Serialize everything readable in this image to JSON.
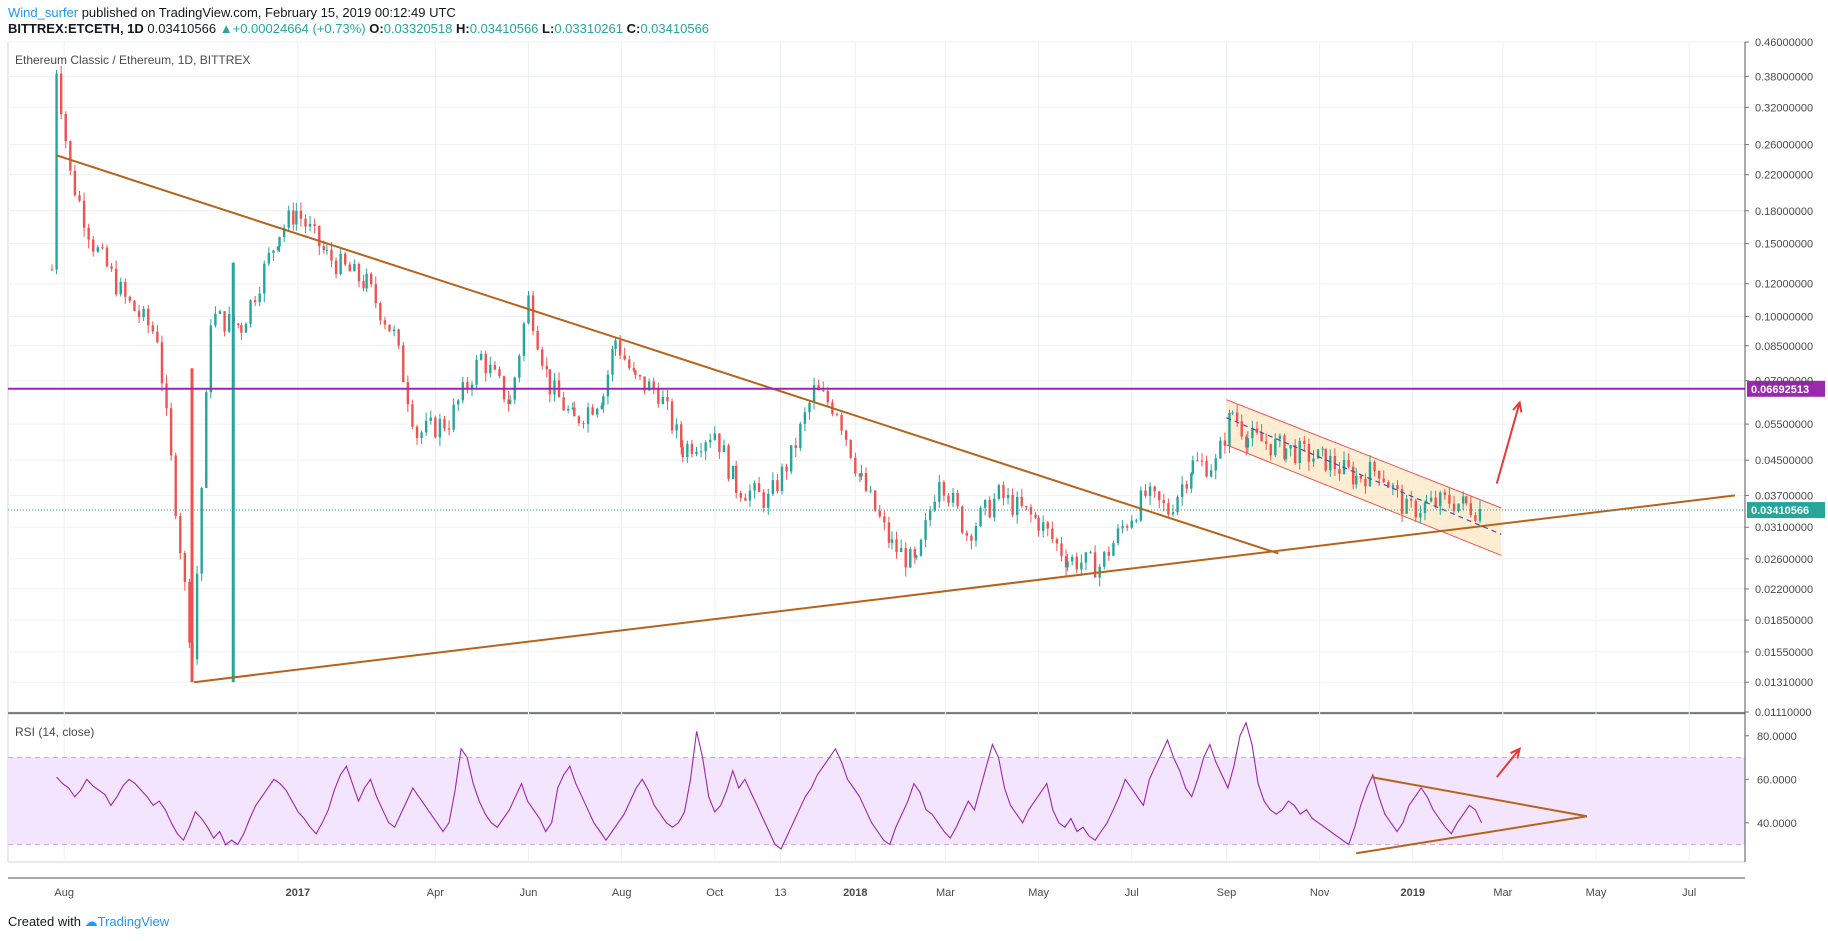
{
  "header": {
    "author": "Wind_surfer",
    "published_text": "published on TradingView.com, February 15, 2019 00:12:49 UTC",
    "symbol": "BITTREX:ETCETH, 1D",
    "last": "0.03410566",
    "change": "+0.00024664 (+0.73%)",
    "open_label": "O:",
    "open": "0.03320518",
    "high_label": "H:",
    "high": "0.03410566",
    "low_label": "L:",
    "low": "0.03310261",
    "close_label": "C:",
    "close": "0.03410566"
  },
  "chart_data": [
    {
      "type": "candlestick",
      "title": "Ethereum Classic / Ethereum, 1D, BITTREX",
      "y_scale": "log",
      "ylim": [
        0.0111,
        0.46
      ],
      "y_ticks": [
        "0.46000000",
        "0.38000000",
        "0.32000000",
        "0.26000000",
        "0.22000000",
        "0.18000000",
        "0.15000000",
        "0.12000000",
        "0.10000000",
        "0.08500000",
        "0.07000000",
        "0.05500000",
        "0.04500000",
        "0.03700000",
        "0.03100000",
        "0.02600000",
        "0.02200000",
        "0.01850000",
        "0.01550000",
        "0.01310000",
        "0.01110000"
      ],
      "x_ticks": [
        "Aug",
        "2017",
        "Apr",
        "Jun",
        "Aug",
        "Oct",
        "13",
        "2018",
        "Mar",
        "May",
        "Jul",
        "Sep",
        "Nov",
        "2019",
        "Mar",
        "May",
        "Jul"
      ],
      "date_range": [
        "2016-07-24",
        "2019-02-15"
      ],
      "price_points": [
        {
          "date": "2016-07-24",
          "value": 0.13
        },
        {
          "date": "2016-07-27",
          "value": 0.4
        },
        {
          "date": "2016-08-05",
          "value": 0.22
        },
        {
          "date": "2016-08-20",
          "value": 0.15
        },
        {
          "date": "2016-09-10",
          "value": 0.11
        },
        {
          "date": "2016-10-01",
          "value": 0.09
        },
        {
          "date": "2016-10-24",
          "value": 0.015
        },
        {
          "date": "2016-11-05",
          "value": 0.1
        },
        {
          "date": "2016-11-25",
          "value": 0.095
        },
        {
          "date": "2016-12-20",
          "value": 0.16
        },
        {
          "date": "2016-12-31",
          "value": 0.18
        },
        {
          "date": "2017-01-20",
          "value": 0.14
        },
        {
          "date": "2017-02-15",
          "value": 0.12
        },
        {
          "date": "2017-03-05",
          "value": 0.09
        },
        {
          "date": "2017-03-20",
          "value": 0.052
        },
        {
          "date": "2017-04-10",
          "value": 0.056
        },
        {
          "date": "2017-05-01",
          "value": 0.08
        },
        {
          "date": "2017-05-20",
          "value": 0.062
        },
        {
          "date": "2017-06-01",
          "value": 0.11
        },
        {
          "date": "2017-06-15",
          "value": 0.068
        },
        {
          "date": "2017-07-01",
          "value": 0.056
        },
        {
          "date": "2017-07-20",
          "value": 0.065
        },
        {
          "date": "2017-07-28",
          "value": 0.088
        },
        {
          "date": "2017-08-10",
          "value": 0.07
        },
        {
          "date": "2017-08-25",
          "value": 0.066
        },
        {
          "date": "2017-09-10",
          "value": 0.048
        },
        {
          "date": "2017-10-01",
          "value": 0.053
        },
        {
          "date": "2017-10-15",
          "value": 0.039
        },
        {
          "date": "2017-11-05",
          "value": 0.036
        },
        {
          "date": "2017-11-20",
          "value": 0.046
        },
        {
          "date": "2017-12-05",
          "value": 0.066
        },
        {
          "date": "2017-12-20",
          "value": 0.06
        },
        {
          "date": "2018-01-05",
          "value": 0.04
        },
        {
          "date": "2018-01-25",
          "value": 0.028
        },
        {
          "date": "2018-02-10",
          "value": 0.025
        },
        {
          "date": "2018-02-25",
          "value": 0.042
        },
        {
          "date": "2018-03-15",
          "value": 0.03
        },
        {
          "date": "2018-04-05",
          "value": 0.037
        },
        {
          "date": "2018-05-01",
          "value": 0.032
        },
        {
          "date": "2018-05-20",
          "value": 0.026
        },
        {
          "date": "2018-06-10",
          "value": 0.025
        },
        {
          "date": "2018-06-25",
          "value": 0.031
        },
        {
          "date": "2018-07-10",
          "value": 0.037
        },
        {
          "date": "2018-07-25",
          "value": 0.034
        },
        {
          "date": "2018-08-10",
          "value": 0.044
        },
        {
          "date": "2018-08-25",
          "value": 0.044
        },
        {
          "date": "2018-09-05",
          "value": 0.059
        },
        {
          "date": "2018-09-15",
          "value": 0.051
        },
        {
          "date": "2018-10-10",
          "value": 0.048
        },
        {
          "date": "2018-11-05",
          "value": 0.045
        },
        {
          "date": "2018-11-25",
          "value": 0.041
        },
        {
          "date": "2018-12-10",
          "value": 0.043
        },
        {
          "date": "2018-12-28",
          "value": 0.034
        },
        {
          "date": "2019-01-10",
          "value": 0.035
        },
        {
          "date": "2019-01-25",
          "value": 0.036
        },
        {
          "date": "2019-02-05",
          "value": 0.035
        },
        {
          "date": "2019-02-15",
          "value": 0.0341
        }
      ],
      "horizontal_line": {
        "value": 0.06692513,
        "label": "0.06692513",
        "color": "#9c27b0"
      },
      "last_price": {
        "value": 0.03410566,
        "label": "0.03410566",
        "color": "#26a69a"
      },
      "trendlines": [
        {
          "from": {
            "date": "2016-07-27",
            "value": 0.245
          },
          "to": {
            "date": "2018-10-05",
            "value": 0.0268
          },
          "color": "#b8621b"
        },
        {
          "from": {
            "date": "2016-10-25",
            "value": 0.0131
          },
          "to": {
            "date": "2019-07-31",
            "value": 0.037
          },
          "color": "#b8621b"
        }
      ],
      "channel": {
        "upper_from": {
          "date": "2018-09-01",
          "value": 0.063
        },
        "upper_to": {
          "date": "2019-02-28",
          "value": 0.0345
        },
        "lower_from": {
          "date": "2018-09-01",
          "value": 0.049
        },
        "lower_to": {
          "date": "2019-02-28",
          "value": 0.0265
        },
        "fill": "#fce8c8",
        "stroke": "#ef5350"
      },
      "dashed_line": {
        "from": {
          "date": "2018-09-01",
          "value": 0.057
        },
        "to": {
          "date": "2019-02-28",
          "value": 0.0298
        },
        "color": "#3f51b5"
      },
      "arrow": {
        "from": {
          "date": "2019-02-25",
          "value": 0.0395
        },
        "to": {
          "date": "2019-03-12",
          "value": 0.062
        },
        "color": "#e53935"
      },
      "up_color": "#26a69a",
      "down_color": "#ef5350"
    },
    {
      "type": "line",
      "title": "RSI (14, close)",
      "ylim": [
        22,
        90
      ],
      "y_ticks": [
        "80.0000",
        "60.0000",
        "40.0000"
      ],
      "band": [
        30,
        70
      ],
      "band_color": "#f3e5fd",
      "series": [
        {
          "values": [
            61,
            58,
            56,
            52,
            55,
            60,
            57,
            55,
            53,
            48,
            52,
            57,
            60,
            58,
            55,
            52,
            48,
            50,
            46,
            40,
            35,
            32,
            38,
            45,
            42,
            38,
            33,
            36,
            30,
            32,
            30,
            35,
            42,
            48,
            52,
            56,
            60,
            58,
            55,
            50,
            45,
            42,
            38,
            35,
            40,
            46,
            55,
            62,
            66,
            58,
            50,
            56,
            60,
            52,
            46,
            40,
            38,
            44,
            50,
            56,
            52,
            48,
            44,
            40,
            36,
            40,
            55,
            74,
            70,
            58,
            50,
            44,
            40,
            38,
            42,
            46,
            52,
            58,
            50,
            46,
            42,
            36,
            40,
            56,
            62,
            66,
            58,
            52,
            46,
            40,
            36,
            32,
            36,
            40,
            44,
            50,
            56,
            60,
            55,
            48,
            44,
            40,
            38,
            40,
            45,
            60,
            82,
            70,
            52,
            45,
            48,
            55,
            64,
            56,
            60,
            54,
            48,
            42,
            36,
            30,
            28,
            34,
            40,
            46,
            52,
            56,
            62,
            66,
            70,
            74,
            68,
            60,
            56,
            52,
            46,
            40,
            36,
            32,
            30,
            38,
            44,
            50,
            58,
            54,
            46,
            44,
            40,
            36,
            33,
            38,
            44,
            50,
            46,
            56,
            66,
            76,
            70,
            56,
            48,
            44,
            40,
            46,
            50,
            54,
            58,
            46,
            40,
            38,
            42,
            36,
            38,
            34,
            32,
            36,
            40,
            46,
            52,
            60,
            56,
            52,
            48,
            60,
            66,
            72,
            78,
            70,
            64,
            56,
            52,
            60,
            70,
            76,
            68,
            62,
            56,
            66,
            80,
            86,
            76,
            58,
            50,
            46,
            44,
            46,
            50,
            48,
            44,
            46,
            42,
            40,
            38,
            36,
            34,
            32,
            30,
            38,
            48,
            56,
            62,
            52,
            44,
            40,
            36,
            40,
            48,
            52,
            56,
            52,
            46,
            42,
            38,
            35,
            40,
            44,
            48,
            46,
            40
          ]
        }
      ],
      "triangle": {
        "upper_from": {
          "date": "2018-12-05",
          "value": 61
        },
        "upper_to": {
          "date": "2019-04-25",
          "value": 43
        },
        "lower_from": {
          "date": "2018-11-25",
          "value": 26
        },
        "lower_to": {
          "date": "2019-04-25",
          "value": 43
        },
        "color": "#b8621b"
      },
      "arrow": {
        "from": {
          "date": "2019-02-25",
          "value": 61
        },
        "to": {
          "date": "2019-03-12",
          "value": 74
        },
        "color": "#e53935"
      },
      "line_color": "#9c27b0"
    }
  ],
  "footer": {
    "created_with": "Created with",
    "brand": "TradingView"
  }
}
